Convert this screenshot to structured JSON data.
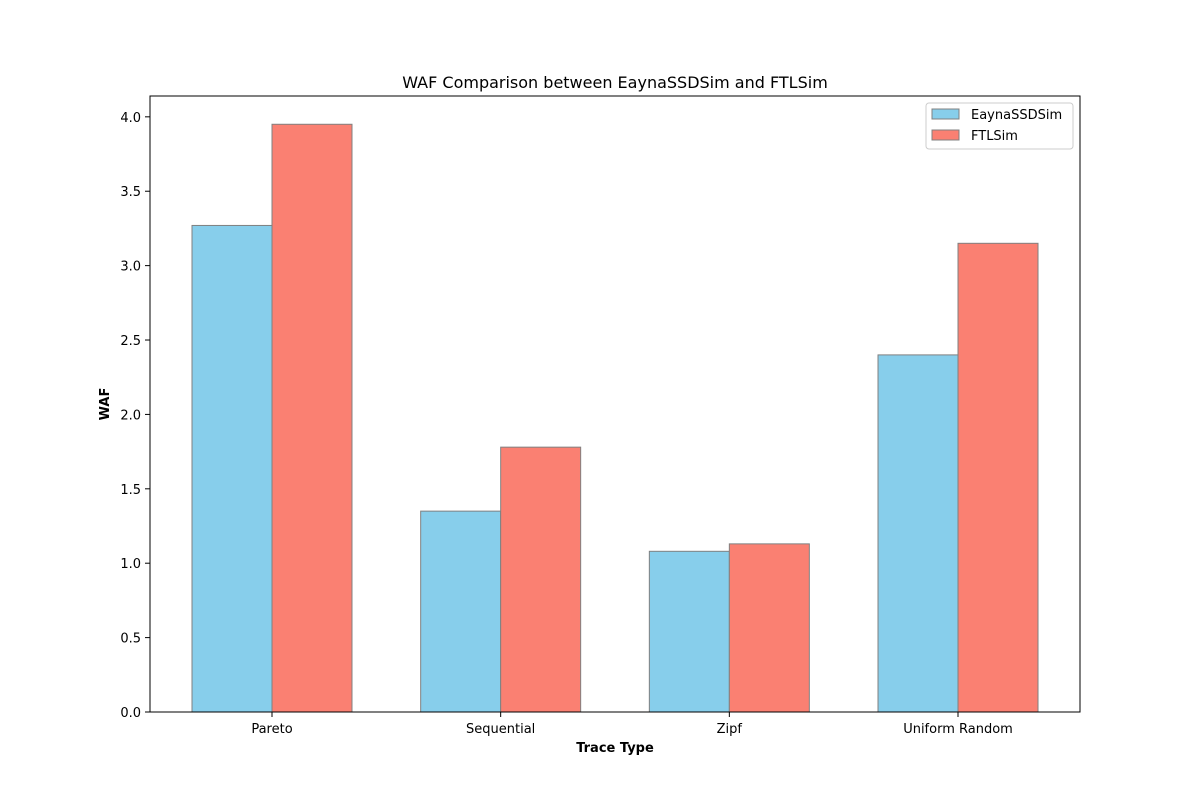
{
  "chart_data": {
    "type": "bar",
    "title": "WAF Comparison between EaynaSSDSim and FTLSim",
    "xlabel": "Trace Type",
    "ylabel": "WAF",
    "categories": [
      "Pareto",
      "Sequential",
      "Zipf",
      "Uniform Random"
    ],
    "series": [
      {
        "name": "EaynaSSDSim",
        "color": "#87ceeb",
        "values": [
          3.27,
          1.35,
          1.08,
          2.4
        ]
      },
      {
        "name": "FTLSim",
        "color": "#fa8072",
        "values": [
          3.95,
          1.78,
          1.13,
          3.15
        ]
      }
    ],
    "ylim": [
      0,
      4.14
    ],
    "yticks": [
      0.0,
      0.5,
      1.0,
      1.5,
      2.0,
      2.5,
      3.0,
      3.5,
      4.0
    ],
    "ytick_labels": [
      "0.0",
      "0.5",
      "1.0",
      "1.5",
      "2.0",
      "2.5",
      "3.0",
      "3.5",
      "4.0"
    ],
    "legend_position": "top-right",
    "grid": false,
    "bar_edge_color": "#808080"
  }
}
